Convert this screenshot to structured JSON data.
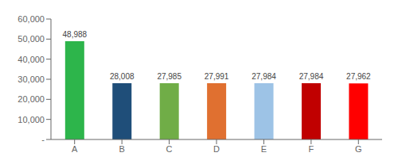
{
  "chart_data": {
    "type": "bar",
    "categories": [
      "A",
      "B",
      "C",
      "D",
      "E",
      "F",
      "G"
    ],
    "values": [
      48988,
      28008,
      27985,
      27991,
      27984,
      27984,
      27962
    ],
    "value_labels": [
      "48,988",
      "28,008",
      "27,985",
      "27,991",
      "27,984",
      "27,984",
      "27,962"
    ],
    "colors": [
      "#2db54b",
      "#1f4e79",
      "#70ad47",
      "#e07030",
      "#9dc3e6",
      "#c00000",
      "#ff0000"
    ],
    "ylim": [
      0,
      60000
    ],
    "yticks": [
      {
        "value": 0,
        "label": "-"
      },
      {
        "value": 10000,
        "label": "10,000"
      },
      {
        "value": 20000,
        "label": "20,000"
      },
      {
        "value": 30000,
        "label": "30,000"
      },
      {
        "value": 40000,
        "label": "40,000"
      },
      {
        "value": 50000,
        "label": "50,000"
      },
      {
        "value": 60000,
        "label": "60,000"
      }
    ],
    "data_labels": true,
    "grid": false
  }
}
